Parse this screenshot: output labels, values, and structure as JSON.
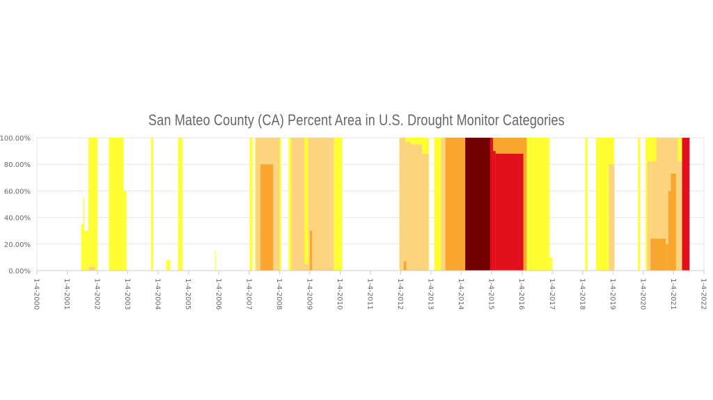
{
  "chart_data": {
    "type": "area",
    "title": "San Mateo County (CA) Percent Area in U.S. Drought Monitor Categories",
    "xlabel": "",
    "ylabel": "",
    "xlim": [
      "2000-01-04",
      "2022-01-04"
    ],
    "ylim": [
      0,
      100
    ],
    "y_ticks": [
      "0.00%",
      "20.00%",
      "40.00%",
      "60.00%",
      "80.00%",
      "100.00%"
    ],
    "x_ticks": [
      "1-4-2000",
      "1-4-2001",
      "1-4-2002",
      "1-4-2003",
      "1-4-2004",
      "1-4-2005",
      "1-4-2006",
      "1-4-2007",
      "1-4-2008",
      "1-4-2009",
      "1-4-2010",
      "1-4-2011",
      "1-4-2012",
      "1-4-2013",
      "1-4-2014",
      "1-4-2015",
      "1-4-2016",
      "1-4-2017",
      "1-4-2018",
      "1-4-2019",
      "1-4-2020",
      "1-4-2021",
      "1-4-2022"
    ],
    "grid": true,
    "legend": "none",
    "step": true,
    "series": [
      {
        "color": "#ffff33",
        "segments": [
          [
            "2001-06-20",
            "2001-07-15",
            35
          ],
          [
            "2001-07-15",
            "2001-07-28",
            55
          ],
          [
            "2001-07-28",
            "2001-09-15",
            30
          ],
          [
            "2001-09-15",
            "2002-01-05",
            100
          ],
          [
            "2002-05-20",
            "2002-11-15",
            100
          ],
          [
            "2002-11-15",
            "2002-12-20",
            60
          ],
          [
            "2003-10-10",
            "2003-11-05",
            100
          ],
          [
            "2004-04-10",
            "2004-05-30",
            8
          ],
          [
            "2004-08-30",
            "2004-10-25",
            100
          ],
          [
            "2005-11-20",
            "2005-12-01",
            15
          ],
          [
            "2007-01-10",
            "2007-02-15",
            100
          ],
          [
            "2007-03-15",
            "2008-01-25",
            100
          ],
          [
            "2008-04-25",
            "2010-01-30",
            100
          ],
          [
            "2011-12-20",
            "2012-12-10",
            100
          ],
          [
            "2013-02-10",
            "2016-12-01",
            100
          ],
          [
            "2016-12-01",
            "2017-01-05",
            10
          ],
          [
            "2018-02-05",
            "2018-03-05",
            100
          ],
          [
            "2018-06-15",
            "2019-01-20",
            100
          ],
          [
            "2019-11-01",
            "2019-11-28",
            100
          ],
          [
            "2020-02-01",
            "2021-04-15",
            100
          ]
        ]
      },
      {
        "color": "#fcd37f",
        "segments": [
          [
            "2001-09-20",
            "2001-12-05",
            3
          ],
          [
            "2007-03-25",
            "2008-01-05",
            100
          ],
          [
            "2008-05-25",
            "2008-11-01",
            100
          ],
          [
            "2008-11-01",
            "2008-12-15",
            5
          ],
          [
            "2008-12-15",
            "2009-10-20",
            100
          ],
          [
            "2011-12-20",
            "2012-03-01",
            100
          ],
          [
            "2012-03-01",
            "2012-05-01",
            97
          ],
          [
            "2012-05-01",
            "2012-09-15",
            95
          ],
          [
            "2012-09-15",
            "2012-12-05",
            88
          ],
          [
            "2013-05-05",
            "2016-03-01",
            100
          ],
          [
            "2018-11-15",
            "2019-01-20",
            80
          ],
          [
            "2020-02-20",
            "2020-06-10",
            82
          ],
          [
            "2020-06-10",
            "2021-02-25",
            100
          ],
          [
            "2021-02-25",
            "2021-04-15",
            82
          ]
        ]
      },
      {
        "color": "#f9a62e",
        "segments": [
          [
            "2007-05-20",
            "2007-10-20",
            80
          ],
          [
            "2009-01-05",
            "2009-02-01",
            30
          ],
          [
            "2012-02-10",
            "2012-03-10",
            7
          ],
          [
            "2013-06-25",
            "2016-03-01",
            100
          ],
          [
            "2020-04-01",
            "2020-10-01",
            24
          ],
          [
            "2020-10-01",
            "2020-11-01",
            20
          ],
          [
            "2020-11-01",
            "2020-12-01",
            60
          ],
          [
            "2020-12-01",
            "2021-02-01",
            73
          ]
        ]
      },
      {
        "color": "#e20f1c",
        "segments": [
          [
            "2014-02-20",
            "2015-01-20",
            100
          ],
          [
            "2015-01-20",
            "2015-02-20",
            90
          ],
          [
            "2015-02-20",
            "2016-01-20",
            88
          ],
          [
            "2021-04-15",
            "2021-07-15",
            100
          ]
        ]
      },
      {
        "color": "#730000",
        "segments": [
          [
            "2014-02-20",
            "2014-12-15",
            100
          ]
        ]
      }
    ]
  }
}
